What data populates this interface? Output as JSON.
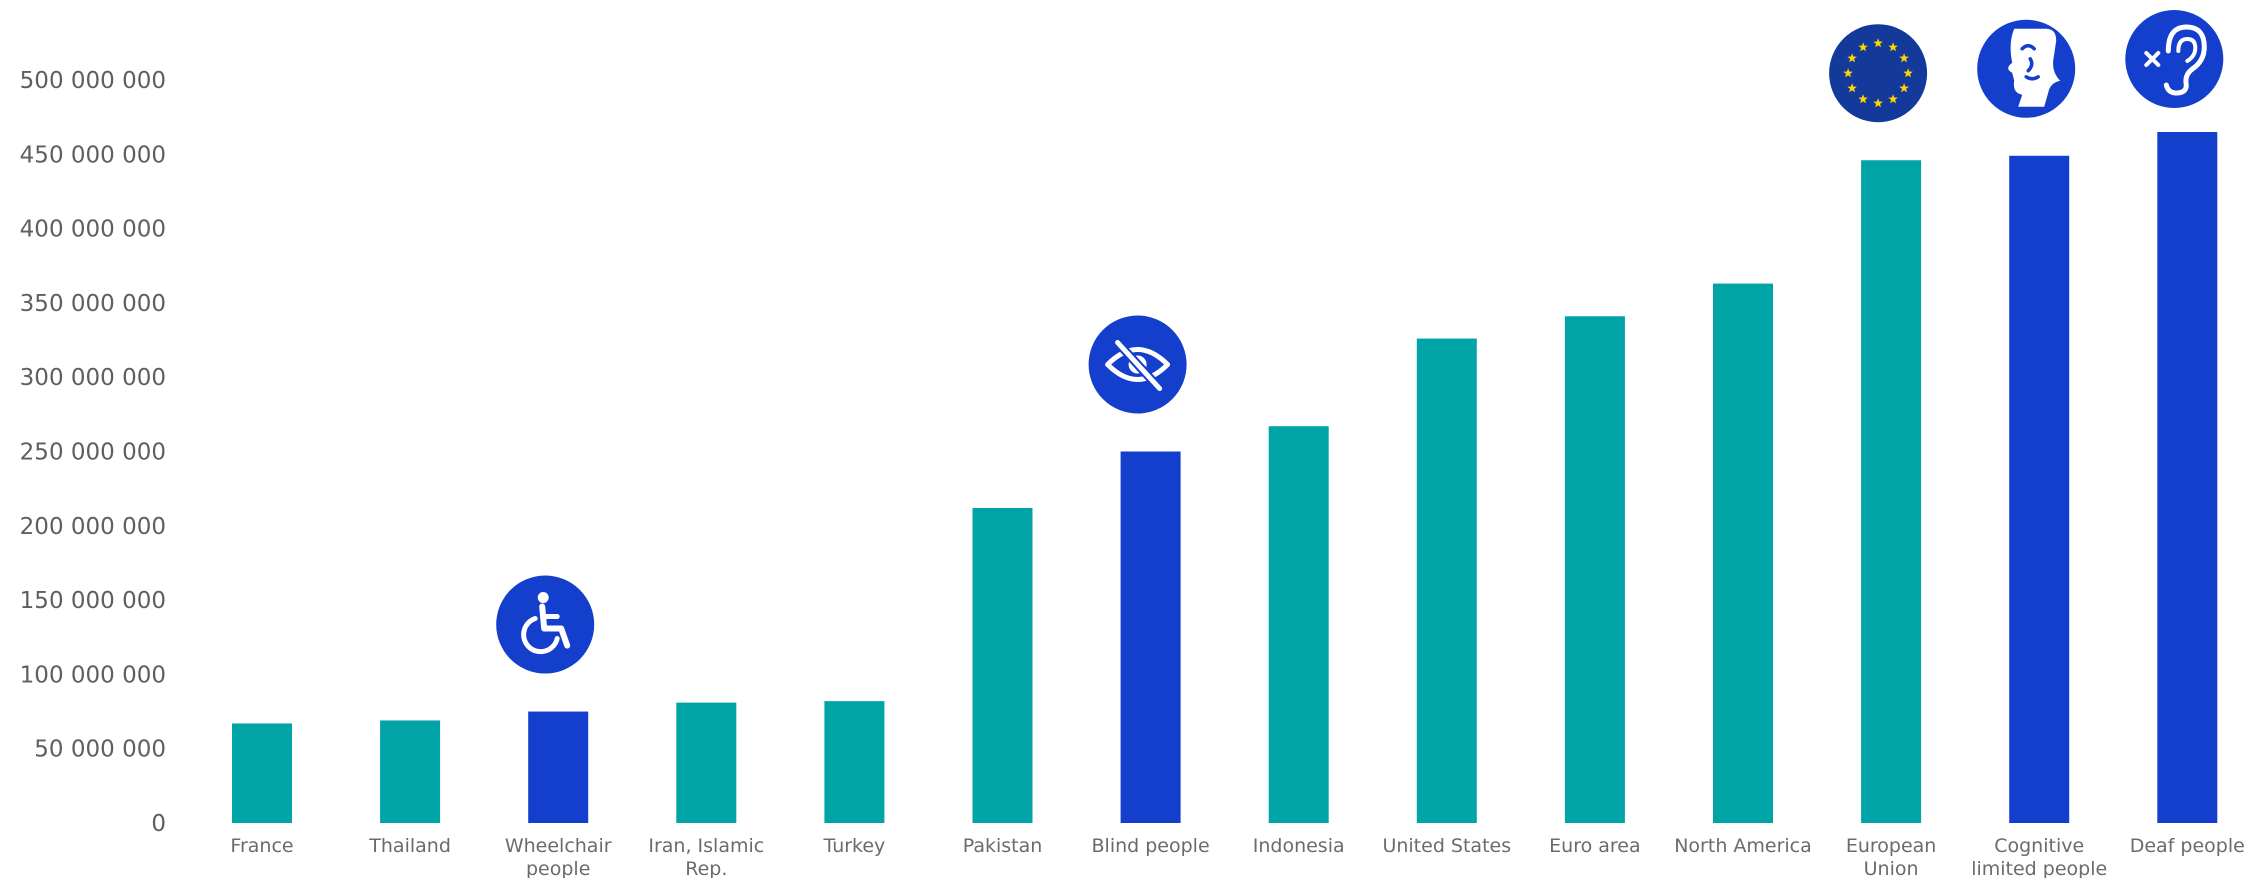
{
  "chart_data": {
    "type": "bar",
    "title": "",
    "xlabel": "",
    "ylabel": "",
    "ylim": [
      0,
      500000000
    ],
    "yticks": [
      0,
      50000000,
      100000000,
      150000000,
      200000000,
      250000000,
      300000000,
      350000000,
      400000000,
      450000000,
      500000000
    ],
    "ytick_labels": [
      "0",
      "50 000 000",
      "100 000 000",
      "150 000 000",
      "200 000 000",
      "250 000 000",
      "300 000 000",
      "350 000 000",
      "400 000 000",
      "450 000 000",
      "500 000 000"
    ],
    "grid": false,
    "legend": "none",
    "categories": [
      [
        "France"
      ],
      [
        "Thailand"
      ],
      [
        "Wheelchair",
        "people"
      ],
      [
        "Iran, Islamic",
        "Rep."
      ],
      [
        "Turkey"
      ],
      [
        "Pakistan"
      ],
      [
        "Blind people"
      ],
      [
        "Indonesia"
      ],
      [
        "United States"
      ],
      [
        "Euro area"
      ],
      [
        "North America"
      ],
      [
        "European",
        "Union"
      ],
      [
        "Cognitive",
        "limited people"
      ],
      [
        "Deaf people"
      ]
    ],
    "values": [
      67000000,
      69000000,
      75000000,
      81000000,
      82000000,
      212000000,
      250000000,
      267000000,
      326000000,
      341000000,
      363000000,
      446000000,
      449000000,
      465000000
    ],
    "bar_kind": [
      "country",
      "country",
      "disability",
      "country",
      "country",
      "country",
      "disability",
      "country",
      "country",
      "country",
      "country",
      "country",
      "disability",
      "disability"
    ],
    "icons": [
      {
        "index": 2,
        "name": "wheelchair-icon"
      },
      {
        "index": 6,
        "name": "eye-slash-icon"
      },
      {
        "index": 11,
        "name": "eu-flag-icon"
      },
      {
        "index": 12,
        "name": "cognitive-face-icon"
      },
      {
        "index": 13,
        "name": "deaf-ear-icon"
      }
    ]
  },
  "colors": {
    "country": "#00a3a6",
    "disability": "#143ecc",
    "icon_bg": "#143ecc",
    "eu_flag_bg": "#133a9b",
    "eu_star": "#ffd500",
    "tick_text": "#5f5f5f",
    "label_text": "#6b6b6b"
  }
}
